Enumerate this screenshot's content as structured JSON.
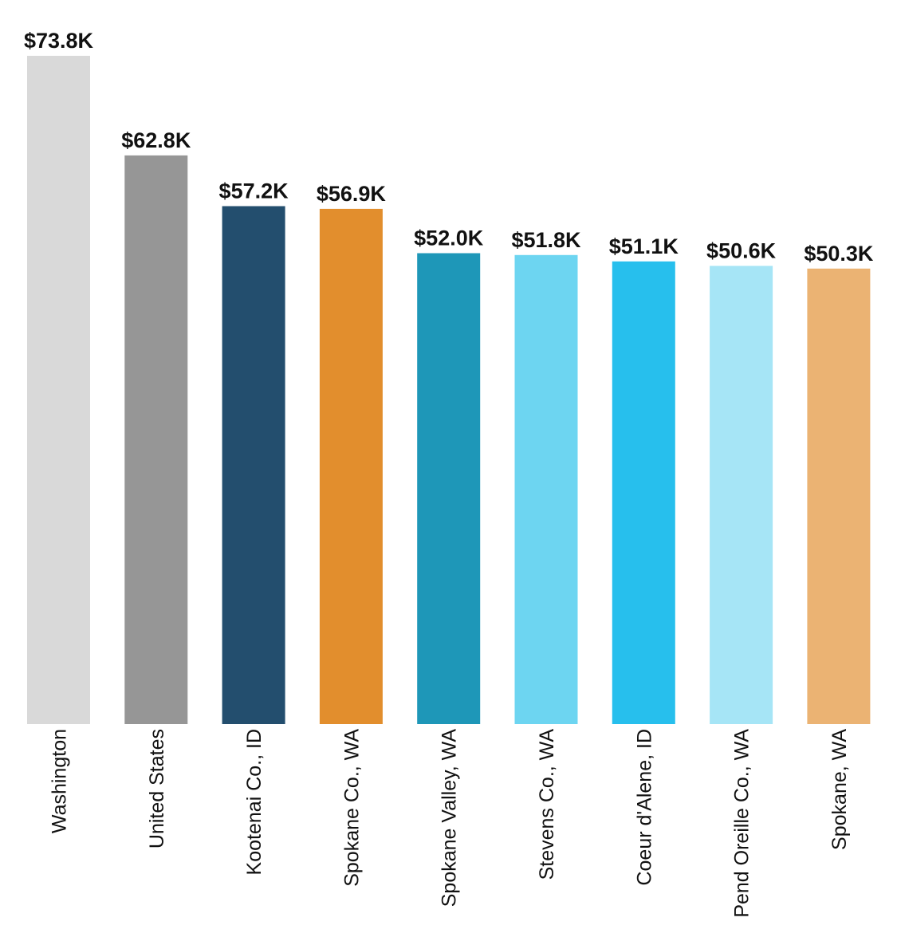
{
  "chart_data": {
    "type": "bar",
    "title": "",
    "xlabel": "",
    "ylabel": "",
    "ylim": [
      0,
      73.8
    ],
    "grid": false,
    "legend": "none",
    "categories": [
      "Washington",
      "United States",
      "Kootenai Co., ID",
      "Spokane Co., WA",
      "Spokane Valley, WA",
      "Stevens Co., WA",
      "Coeur d'Alene, ID",
      "Pend Oreille Co., WA",
      "Spokane, WA"
    ],
    "values": [
      73.8,
      62.8,
      57.2,
      56.9,
      52.0,
      51.8,
      51.1,
      50.6,
      50.3
    ],
    "value_labels": [
      "$73.8K",
      "$62.8K",
      "$57.2K",
      "$56.9K",
      "$52.0K",
      "$51.8K",
      "$51.1K",
      "$50.6K",
      "$50.3K"
    ],
    "colors": [
      "#d9d9d9",
      "#969696",
      "#234e6e",
      "#e28e2d",
      "#1e97b8",
      "#6dd5f1",
      "#27bfed",
      "#a6e5f6",
      "#ebb373"
    ]
  }
}
